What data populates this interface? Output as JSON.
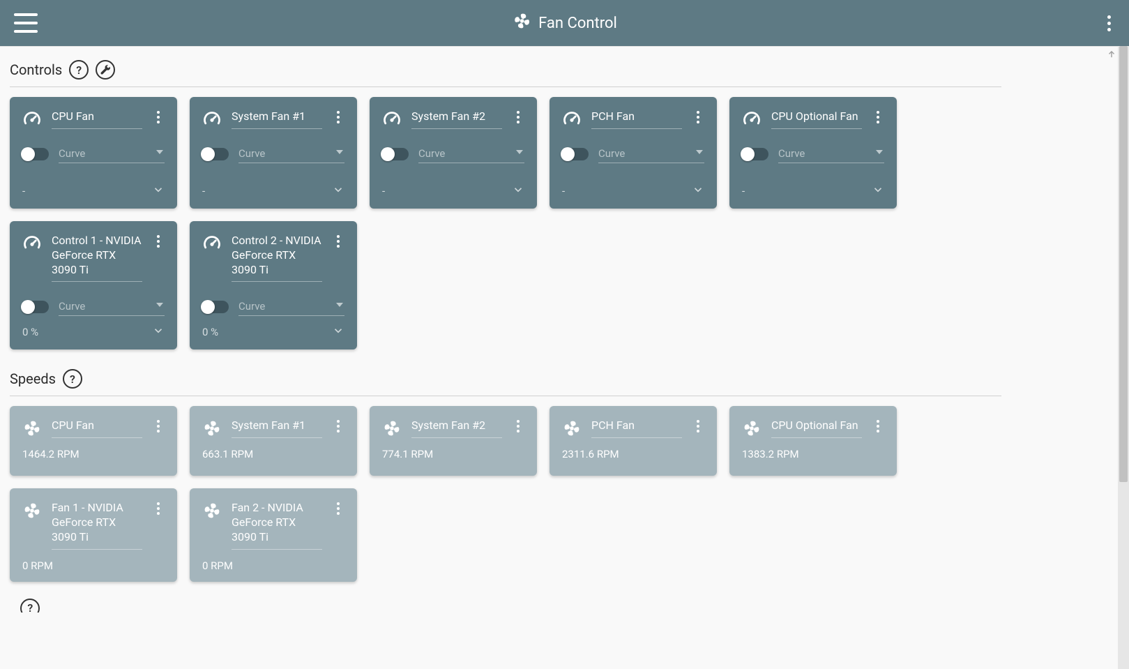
{
  "app": {
    "title": "Fan Control"
  },
  "sections": {
    "controls_label": "Controls",
    "speeds_label": "Speeds"
  },
  "placeholders": {
    "curve": "Curve"
  },
  "controls": [
    {
      "name": "CPU Fan",
      "curve_value": "",
      "percent": "-"
    },
    {
      "name": "System Fan #1",
      "curve_value": "",
      "percent": "-"
    },
    {
      "name": "System Fan #2",
      "curve_value": "",
      "percent": "-"
    },
    {
      "name": "PCH Fan",
      "curve_value": "",
      "percent": "-"
    },
    {
      "name": "CPU Optional Fan",
      "curve_value": "",
      "percent": "-"
    },
    {
      "name": "Control 1 - NVIDIA GeForce RTX 3090 Ti",
      "curve_value": "",
      "percent": "0 %"
    },
    {
      "name": "Control 2 - NVIDIA GeForce RTX 3090 Ti",
      "curve_value": "",
      "percent": "0 %"
    }
  ],
  "speeds": [
    {
      "name": "CPU Fan",
      "rpm": "1464.2 RPM"
    },
    {
      "name": "System Fan #1",
      "rpm": "663.1 RPM"
    },
    {
      "name": "System Fan #2",
      "rpm": "774.1 RPM"
    },
    {
      "name": "PCH Fan",
      "rpm": "2311.6 RPM"
    },
    {
      "name": "CPU Optional Fan",
      "rpm": "1383.2 RPM"
    },
    {
      "name": "Fan 1 - NVIDIA GeForce RTX 3090 Ti",
      "rpm": "0 RPM"
    },
    {
      "name": "Fan 2 - NVIDIA GeForce RTX 3090 Ti",
      "rpm": "0 RPM"
    }
  ],
  "colors": {
    "header_bg": "#5e7a84",
    "control_card_bg": "#5e7a84",
    "speed_card_bg": "#a4b5bc",
    "page_bg": "#f9f9f9"
  }
}
